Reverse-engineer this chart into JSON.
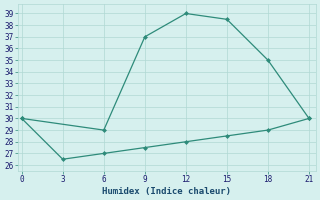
{
  "xlabel": "Humidex (Indice chaleur)",
  "x_upper": [
    0,
    6,
    9,
    12,
    15,
    18,
    21
  ],
  "y_upper": [
    30,
    29,
    37,
    39,
    38.5,
    35,
    30
  ],
  "x_lower": [
    0,
    3,
    6,
    9,
    12,
    15,
    18,
    21
  ],
  "y_lower": [
    30,
    26.5,
    27,
    27.5,
    28,
    28.5,
    29,
    30
  ],
  "line_color": "#2e8b7a",
  "bg_color": "#d6f0ee",
  "grid_color": "#b0d8d4",
  "ylim": [
    25.5,
    39.8
  ],
  "xlim": [
    -0.3,
    21.5
  ],
  "xticks": [
    0,
    3,
    6,
    9,
    12,
    15,
    18,
    21
  ],
  "yticks": [
    26,
    27,
    28,
    29,
    30,
    31,
    32,
    33,
    34,
    35,
    36,
    37,
    38,
    39
  ]
}
